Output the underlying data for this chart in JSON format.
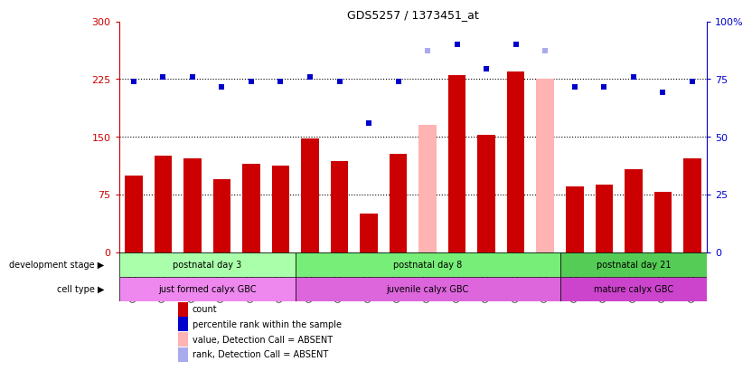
{
  "title": "GDS5257 / 1373451_at",
  "samples": [
    "GSM1202424",
    "GSM1202425",
    "GSM1202426",
    "GSM1202427",
    "GSM1202428",
    "GSM1202429",
    "GSM1202430",
    "GSM1202431",
    "GSM1202432",
    "GSM1202433",
    "GSM1202434",
    "GSM1202435",
    "GSM1202436",
    "GSM1202437",
    "GSM1202438",
    "GSM1202439",
    "GSM1202440",
    "GSM1202441",
    "GSM1202442",
    "GSM1202443"
  ],
  "bar_values": [
    100,
    125,
    122,
    95,
    115,
    112,
    148,
    118,
    50,
    128,
    165,
    230,
    152,
    235,
    225,
    85,
    88,
    108,
    78,
    122
  ],
  "bar_absent": [
    false,
    false,
    false,
    false,
    false,
    false,
    false,
    false,
    false,
    false,
    true,
    false,
    false,
    false,
    true,
    false,
    false,
    false,
    false,
    false
  ],
  "dot_values": [
    222,
    228,
    228,
    215,
    222,
    222,
    228,
    222,
    168,
    222,
    262,
    270,
    238,
    270,
    262,
    215,
    215,
    228,
    208,
    222
  ],
  "dot_absent": [
    false,
    false,
    false,
    false,
    false,
    false,
    false,
    false,
    false,
    false,
    true,
    false,
    false,
    false,
    true,
    false,
    false,
    false,
    false,
    false
  ],
  "ylim_left": [
    0,
    300
  ],
  "ylim_right": [
    0,
    100
  ],
  "yticks_left": [
    0,
    75,
    150,
    225,
    300
  ],
  "yticks_right": [
    0,
    25,
    50,
    75,
    100
  ],
  "hlines": [
    75,
    150,
    225
  ],
  "bar_color_normal": "#cc0000",
  "bar_color_absent": "#ffb3b3",
  "dot_color_normal": "#0000cc",
  "dot_color_absent": "#aaaaee",
  "dev_stage_groups": [
    {
      "label": "postnatal day 3",
      "start": 0,
      "end": 6,
      "color": "#aaffaa"
    },
    {
      "label": "postnatal day 8",
      "start": 6,
      "end": 15,
      "color": "#77ee77"
    },
    {
      "label": "postnatal day 21",
      "start": 15,
      "end": 20,
      "color": "#55cc55"
    }
  ],
  "cell_type_groups": [
    {
      "label": "just formed calyx GBC",
      "start": 0,
      "end": 6,
      "color": "#ee88ee"
    },
    {
      "label": "juvenile calyx GBC",
      "start": 6,
      "end": 15,
      "color": "#dd66dd"
    },
    {
      "label": "mature calyx GBC",
      "start": 15,
      "end": 20,
      "color": "#cc44cc"
    }
  ],
  "dev_stage_label": "development stage",
  "cell_type_label": "cell type",
  "legend_items": [
    {
      "label": "count",
      "color": "#cc0000"
    },
    {
      "label": "percentile rank within the sample",
      "color": "#0000cc"
    },
    {
      "label": "value, Detection Call = ABSENT",
      "color": "#ffb3b3"
    },
    {
      "label": "rank, Detection Call = ABSENT",
      "color": "#aaaaee"
    }
  ],
  "bar_width": 0.6,
  "right_axis_color": "#0000cc",
  "left_axis_color": "#cc0000",
  "facecolor": "white"
}
